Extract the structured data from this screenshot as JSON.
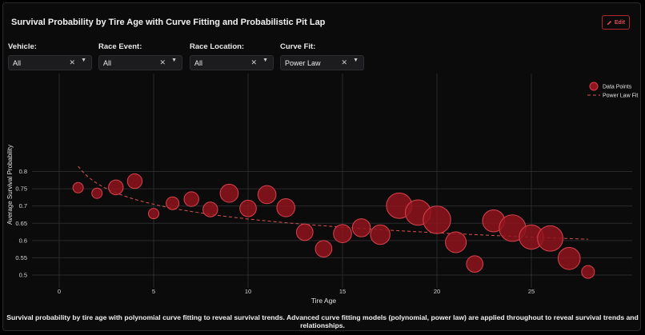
{
  "header": {
    "title": "Survival Probability by Tire Age with Curve Fitting and Probabilistic Pit Lap",
    "edit_label": "Edit"
  },
  "filters": [
    {
      "label": "Vehicle:",
      "value": "All"
    },
    {
      "label": "Race Event:",
      "value": "All"
    },
    {
      "label": "Race Location:",
      "value": "All"
    },
    {
      "label": "Curve Fit:",
      "value": "Power Law"
    }
  ],
  "caption": "Survival probability by tire age with polynomial curve fitting to reveal survival trends. Advanced curve fitting models (polynomial, power law) are applied throughout to reveal survival trends and relationships.",
  "colors": {
    "accent": "#b3262e",
    "bubble_fill": "#8f141d",
    "bubble_stroke": "#d9434d",
    "fit_line": "#d9534f"
  },
  "chart_data": {
    "type": "scatter",
    "title": "",
    "xlabel": "Tire Age",
    "ylabel": "Average Survival Probability",
    "xlim": [
      -3,
      29.5
    ],
    "ylim": [
      0.485,
      0.835
    ],
    "xticks": [
      0,
      5,
      10,
      15,
      20,
      25
    ],
    "yticks": [
      0.5,
      0.55,
      0.6,
      0.65,
      0.7,
      0.75,
      0.8
    ],
    "grid": true,
    "legend_position": "top-right",
    "series": [
      {
        "name": "Data Points",
        "points": [
          {
            "x": 1,
            "y": 0.753,
            "size": 1
          },
          {
            "x": 2,
            "y": 0.737,
            "size": 1
          },
          {
            "x": 3,
            "y": 0.754,
            "size": 2
          },
          {
            "x": 4,
            "y": 0.772,
            "size": 2
          },
          {
            "x": 5,
            "y": 0.678,
            "size": 1
          },
          {
            "x": 6,
            "y": 0.708,
            "size": 1.5
          },
          {
            "x": 7,
            "y": 0.72,
            "size": 2
          },
          {
            "x": 8,
            "y": 0.69,
            "size": 2
          },
          {
            "x": 9,
            "y": 0.737,
            "size": 3
          },
          {
            "x": 10,
            "y": 0.693,
            "size": 2.5
          },
          {
            "x": 11,
            "y": 0.733,
            "size": 3
          },
          {
            "x": 12,
            "y": 0.695,
            "size": 3
          },
          {
            "x": 13,
            "y": 0.624,
            "size": 2.5
          },
          {
            "x": 14,
            "y": 0.576,
            "size": 2.5
          },
          {
            "x": 15,
            "y": 0.62,
            "size": 3
          },
          {
            "x": 16,
            "y": 0.637,
            "size": 3
          },
          {
            "x": 17,
            "y": 0.617,
            "size": 3.5
          },
          {
            "x": 18,
            "y": 0.701,
            "size": 6
          },
          {
            "x": 19,
            "y": 0.681,
            "size": 6
          },
          {
            "x": 20,
            "y": 0.66,
            "size": 7
          },
          {
            "x": 21,
            "y": 0.595,
            "size": 4
          },
          {
            "x": 22,
            "y": 0.532,
            "size": 2.5
          },
          {
            "x": 23,
            "y": 0.657,
            "size": 4.5
          },
          {
            "x": 24,
            "y": 0.636,
            "size": 6.5
          },
          {
            "x": 25,
            "y": 0.61,
            "size": 5.5
          },
          {
            "x": 26,
            "y": 0.606,
            "size": 6
          },
          {
            "x": 27,
            "y": 0.548,
            "size": 4.5
          },
          {
            "x": 28,
            "y": 0.509,
            "size": 1.5
          }
        ]
      },
      {
        "name": "Power Law Fit",
        "fit": {
          "model": "power_law",
          "a": 0.815,
          "b": -0.09,
          "x_range": [
            1,
            28
          ]
        }
      }
    ]
  }
}
